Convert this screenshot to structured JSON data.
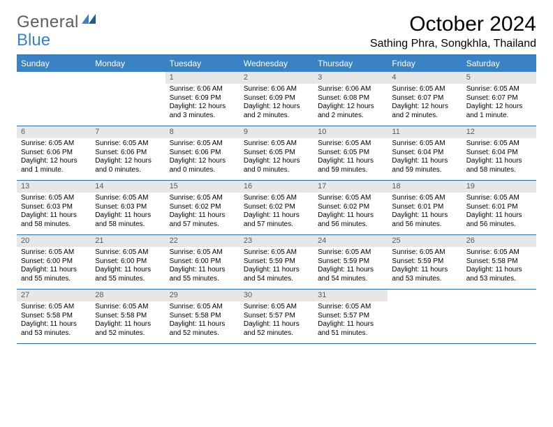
{
  "logo": {
    "text1": "General",
    "text2": "Blue"
  },
  "title": "October 2024",
  "location": "Sathing Phra, Songkhla, Thailand",
  "colors": {
    "header_bg": "#3a82c4",
    "header_text": "#ffffff",
    "border": "#2a6aa3",
    "daynum_bg": "#e7e7e7",
    "daynum_text": "#5a5a5a",
    "logo_gray": "#5c5c5c",
    "logo_blue": "#3a82c4"
  },
  "days_of_week": [
    "Sunday",
    "Monday",
    "Tuesday",
    "Wednesday",
    "Thursday",
    "Friday",
    "Saturday"
  ],
  "weeks": [
    [
      null,
      null,
      {
        "n": "1",
        "sr": "Sunrise: 6:06 AM",
        "ss": "Sunset: 6:09 PM",
        "dl": "Daylight: 12 hours and 3 minutes."
      },
      {
        "n": "2",
        "sr": "Sunrise: 6:06 AM",
        "ss": "Sunset: 6:09 PM",
        "dl": "Daylight: 12 hours and 2 minutes."
      },
      {
        "n": "3",
        "sr": "Sunrise: 6:06 AM",
        "ss": "Sunset: 6:08 PM",
        "dl": "Daylight: 12 hours and 2 minutes."
      },
      {
        "n": "4",
        "sr": "Sunrise: 6:05 AM",
        "ss": "Sunset: 6:07 PM",
        "dl": "Daylight: 12 hours and 2 minutes."
      },
      {
        "n": "5",
        "sr": "Sunrise: 6:05 AM",
        "ss": "Sunset: 6:07 PM",
        "dl": "Daylight: 12 hours and 1 minute."
      }
    ],
    [
      {
        "n": "6",
        "sr": "Sunrise: 6:05 AM",
        "ss": "Sunset: 6:06 PM",
        "dl": "Daylight: 12 hours and 1 minute."
      },
      {
        "n": "7",
        "sr": "Sunrise: 6:05 AM",
        "ss": "Sunset: 6:06 PM",
        "dl": "Daylight: 12 hours and 0 minutes."
      },
      {
        "n": "8",
        "sr": "Sunrise: 6:05 AM",
        "ss": "Sunset: 6:06 PM",
        "dl": "Daylight: 12 hours and 0 minutes."
      },
      {
        "n": "9",
        "sr": "Sunrise: 6:05 AM",
        "ss": "Sunset: 6:05 PM",
        "dl": "Daylight: 12 hours and 0 minutes."
      },
      {
        "n": "10",
        "sr": "Sunrise: 6:05 AM",
        "ss": "Sunset: 6:05 PM",
        "dl": "Daylight: 11 hours and 59 minutes."
      },
      {
        "n": "11",
        "sr": "Sunrise: 6:05 AM",
        "ss": "Sunset: 6:04 PM",
        "dl": "Daylight: 11 hours and 59 minutes."
      },
      {
        "n": "12",
        "sr": "Sunrise: 6:05 AM",
        "ss": "Sunset: 6:04 PM",
        "dl": "Daylight: 11 hours and 58 minutes."
      }
    ],
    [
      {
        "n": "13",
        "sr": "Sunrise: 6:05 AM",
        "ss": "Sunset: 6:03 PM",
        "dl": "Daylight: 11 hours and 58 minutes."
      },
      {
        "n": "14",
        "sr": "Sunrise: 6:05 AM",
        "ss": "Sunset: 6:03 PM",
        "dl": "Daylight: 11 hours and 58 minutes."
      },
      {
        "n": "15",
        "sr": "Sunrise: 6:05 AM",
        "ss": "Sunset: 6:02 PM",
        "dl": "Daylight: 11 hours and 57 minutes."
      },
      {
        "n": "16",
        "sr": "Sunrise: 6:05 AM",
        "ss": "Sunset: 6:02 PM",
        "dl": "Daylight: 11 hours and 57 minutes."
      },
      {
        "n": "17",
        "sr": "Sunrise: 6:05 AM",
        "ss": "Sunset: 6:02 PM",
        "dl": "Daylight: 11 hours and 56 minutes."
      },
      {
        "n": "18",
        "sr": "Sunrise: 6:05 AM",
        "ss": "Sunset: 6:01 PM",
        "dl": "Daylight: 11 hours and 56 minutes."
      },
      {
        "n": "19",
        "sr": "Sunrise: 6:05 AM",
        "ss": "Sunset: 6:01 PM",
        "dl": "Daylight: 11 hours and 56 minutes."
      }
    ],
    [
      {
        "n": "20",
        "sr": "Sunrise: 6:05 AM",
        "ss": "Sunset: 6:00 PM",
        "dl": "Daylight: 11 hours and 55 minutes."
      },
      {
        "n": "21",
        "sr": "Sunrise: 6:05 AM",
        "ss": "Sunset: 6:00 PM",
        "dl": "Daylight: 11 hours and 55 minutes."
      },
      {
        "n": "22",
        "sr": "Sunrise: 6:05 AM",
        "ss": "Sunset: 6:00 PM",
        "dl": "Daylight: 11 hours and 55 minutes."
      },
      {
        "n": "23",
        "sr": "Sunrise: 6:05 AM",
        "ss": "Sunset: 5:59 PM",
        "dl": "Daylight: 11 hours and 54 minutes."
      },
      {
        "n": "24",
        "sr": "Sunrise: 6:05 AM",
        "ss": "Sunset: 5:59 PM",
        "dl": "Daylight: 11 hours and 54 minutes."
      },
      {
        "n": "25",
        "sr": "Sunrise: 6:05 AM",
        "ss": "Sunset: 5:59 PM",
        "dl": "Daylight: 11 hours and 53 minutes."
      },
      {
        "n": "26",
        "sr": "Sunrise: 6:05 AM",
        "ss": "Sunset: 5:58 PM",
        "dl": "Daylight: 11 hours and 53 minutes."
      }
    ],
    [
      {
        "n": "27",
        "sr": "Sunrise: 6:05 AM",
        "ss": "Sunset: 5:58 PM",
        "dl": "Daylight: 11 hours and 53 minutes."
      },
      {
        "n": "28",
        "sr": "Sunrise: 6:05 AM",
        "ss": "Sunset: 5:58 PM",
        "dl": "Daylight: 11 hours and 52 minutes."
      },
      {
        "n": "29",
        "sr": "Sunrise: 6:05 AM",
        "ss": "Sunset: 5:58 PM",
        "dl": "Daylight: 11 hours and 52 minutes."
      },
      {
        "n": "30",
        "sr": "Sunrise: 6:05 AM",
        "ss": "Sunset: 5:57 PM",
        "dl": "Daylight: 11 hours and 52 minutes."
      },
      {
        "n": "31",
        "sr": "Sunrise: 6:05 AM",
        "ss": "Sunset: 5:57 PM",
        "dl": "Daylight: 11 hours and 51 minutes."
      },
      null,
      null
    ]
  ]
}
